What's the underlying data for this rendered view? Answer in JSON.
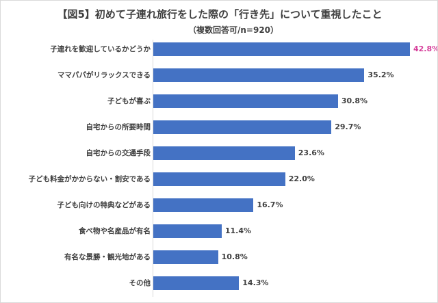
{
  "chart_data": {
    "type": "bar",
    "orientation": "horizontal",
    "title": "【図5】初めて子連れ旅行をした際の「行き先」について重視したこと",
    "subtitle": "（複数回答可/n=920）",
    "xlabel": "",
    "ylabel": "",
    "unit": "%",
    "xlim": [
      0,
      42.8
    ],
    "grid": false,
    "categories": [
      "子連れを歓迎しているかどうか",
      "ママパパがリラックスできる",
      "子どもが喜ぶ",
      "自宅からの所要時間",
      "自宅からの交通手段",
      "子ども料金がかからない・割安である",
      "子ども向けの特典などがある",
      "食べ物や名産品が有名",
      "有名な景勝・観光地がある",
      "その他"
    ],
    "values": [
      42.8,
      35.2,
      30.8,
      29.7,
      23.6,
      22.0,
      16.7,
      11.4,
      10.8,
      14.3
    ],
    "value_labels": [
      "42.8%",
      "35.2%",
      "30.8%",
      "29.7%",
      "23.6%",
      "22.0%",
      "16.7%",
      "11.4%",
      "10.8%",
      "14.3%"
    ],
    "bar_color": "#4472c4",
    "highlight_label_color": "#d63e9a",
    "label_color": "#404040"
  }
}
